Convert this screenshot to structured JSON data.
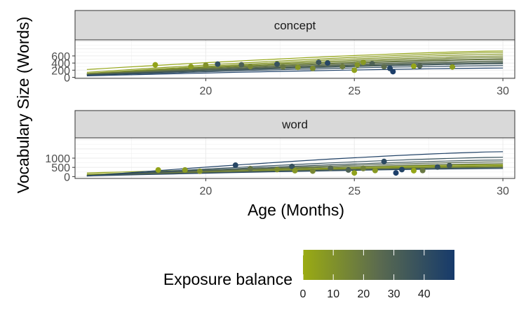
{
  "chart_data": {
    "type": "scatter",
    "xlabel": "Age (Months)",
    "ylabel": "Vocabulary Size (Words)",
    "xlim": [
      15.6,
      30.4
    ],
    "x_ticks": [
      20,
      25,
      30
    ],
    "grid": true,
    "colorbar": {
      "title": "Exposure balance",
      "range": [
        0,
        50
      ],
      "ticks": [
        0,
        10,
        20,
        30,
        40
      ],
      "low_color": "#9aab12",
      "mid_color": "#5b6b4f",
      "high_color": "#163a6b",
      "placement": "bottom"
    },
    "facets": [
      {
        "label": "concept",
        "ylim": [
          -30,
          1050
        ],
        "y_ticks": [
          0,
          200,
          400,
          600
        ],
        "lines": [
          {
            "balance": 2,
            "y16": 220,
            "y30": 740
          },
          {
            "balance": 5,
            "y16": 140,
            "y30": 700
          },
          {
            "balance": 8,
            "y16": 110,
            "y30": 650
          },
          {
            "balance": 12,
            "y16": 100,
            "y30": 600
          },
          {
            "balance": 15,
            "y16": 95,
            "y30": 560
          },
          {
            "balance": 18,
            "y16": 90,
            "y30": 520
          },
          {
            "balance": 22,
            "y16": 85,
            "y30": 500
          },
          {
            "balance": 25,
            "y16": 80,
            "y30": 460
          },
          {
            "balance": 28,
            "y16": 75,
            "y30": 430
          },
          {
            "balance": 32,
            "y16": 70,
            "y30": 400
          },
          {
            "balance": 35,
            "y16": 65,
            "y30": 380
          },
          {
            "balance": 40,
            "y16": 55,
            "y30": 330
          },
          {
            "balance": 47,
            "y16": 40,
            "y30": 260
          }
        ],
        "points": [
          {
            "x": 18.3,
            "y": 350,
            "balance": 3
          },
          {
            "x": 19.5,
            "y": 300,
            "balance": 6
          },
          {
            "x": 20.0,
            "y": 340,
            "balance": 10
          },
          {
            "x": 20.4,
            "y": 370,
            "balance": 40
          },
          {
            "x": 21.2,
            "y": 350,
            "balance": 30
          },
          {
            "x": 21.5,
            "y": 300,
            "balance": 14
          },
          {
            "x": 22.4,
            "y": 370,
            "balance": 38
          },
          {
            "x": 22.6,
            "y": 290,
            "balance": 20
          },
          {
            "x": 23.1,
            "y": 280,
            "balance": 8
          },
          {
            "x": 23.6,
            "y": 250,
            "balance": 12
          },
          {
            "x": 23.8,
            "y": 420,
            "balance": 36
          },
          {
            "x": 24.1,
            "y": 400,
            "balance": 44
          },
          {
            "x": 24.6,
            "y": 300,
            "balance": 18
          },
          {
            "x": 25.0,
            "y": 200,
            "balance": 4
          },
          {
            "x": 25.1,
            "y": 350,
            "balance": 9
          },
          {
            "x": 25.3,
            "y": 420,
            "balance": 7
          },
          {
            "x": 25.6,
            "y": 380,
            "balance": 30
          },
          {
            "x": 26.0,
            "y": 300,
            "balance": 24
          },
          {
            "x": 26.2,
            "y": 250,
            "balance": 45
          },
          {
            "x": 26.3,
            "y": 160,
            "balance": 48
          },
          {
            "x": 27.0,
            "y": 310,
            "balance": 2
          },
          {
            "x": 27.2,
            "y": 320,
            "balance": 28
          },
          {
            "x": 28.3,
            "y": 290,
            "balance": 5
          }
        ]
      },
      {
        "label": "word",
        "ylim": [
          -100,
          2100
        ],
        "y_ticks": [
          0,
          500,
          1000
        ],
        "lines": [
          {
            "balance": 3,
            "y16": 200,
            "y30": 650
          },
          {
            "balance": 6,
            "y16": 130,
            "y30": 600
          },
          {
            "balance": 10,
            "y16": 90,
            "y30": 560
          },
          {
            "balance": 14,
            "y16": 80,
            "y30": 520
          },
          {
            "balance": 18,
            "y16": 70,
            "y30": 500
          },
          {
            "balance": 22,
            "y16": 65,
            "y30": 700
          },
          {
            "balance": 26,
            "y16": 60,
            "y30": 800
          },
          {
            "balance": 30,
            "y16": 50,
            "y30": 480
          },
          {
            "balance": 34,
            "y16": 45,
            "y30": 900
          },
          {
            "balance": 38,
            "y16": 40,
            "y30": 1050
          },
          {
            "balance": 42,
            "y16": 35,
            "y30": 440
          },
          {
            "balance": 46,
            "y16": 30,
            "y30": 1350
          }
        ],
        "points": [
          {
            "x": 18.4,
            "y": 360,
            "balance": 3
          },
          {
            "x": 19.3,
            "y": 360,
            "balance": 6
          },
          {
            "x": 19.8,
            "y": 290,
            "balance": 10
          },
          {
            "x": 21.0,
            "y": 620,
            "balance": 44
          },
          {
            "x": 21.5,
            "y": 430,
            "balance": 22
          },
          {
            "x": 22.4,
            "y": 380,
            "balance": 12
          },
          {
            "x": 22.9,
            "y": 550,
            "balance": 38
          },
          {
            "x": 23.0,
            "y": 320,
            "balance": 8
          },
          {
            "x": 23.6,
            "y": 300,
            "balance": 14
          },
          {
            "x": 24.2,
            "y": 450,
            "balance": 28
          },
          {
            "x": 24.8,
            "y": 360,
            "balance": 30
          },
          {
            "x": 25.0,
            "y": 200,
            "balance": 4
          },
          {
            "x": 25.3,
            "y": 440,
            "balance": 16
          },
          {
            "x": 25.7,
            "y": 330,
            "balance": 7
          },
          {
            "x": 26.0,
            "y": 820,
            "balance": 42
          },
          {
            "x": 26.4,
            "y": 200,
            "balance": 48
          },
          {
            "x": 26.6,
            "y": 380,
            "balance": 45
          },
          {
            "x": 27.0,
            "y": 320,
            "balance": 2
          },
          {
            "x": 27.3,
            "y": 330,
            "balance": 20
          },
          {
            "x": 27.8,
            "y": 520,
            "balance": 40
          },
          {
            "x": 28.2,
            "y": 600,
            "balance": 34
          }
        ]
      }
    ]
  }
}
